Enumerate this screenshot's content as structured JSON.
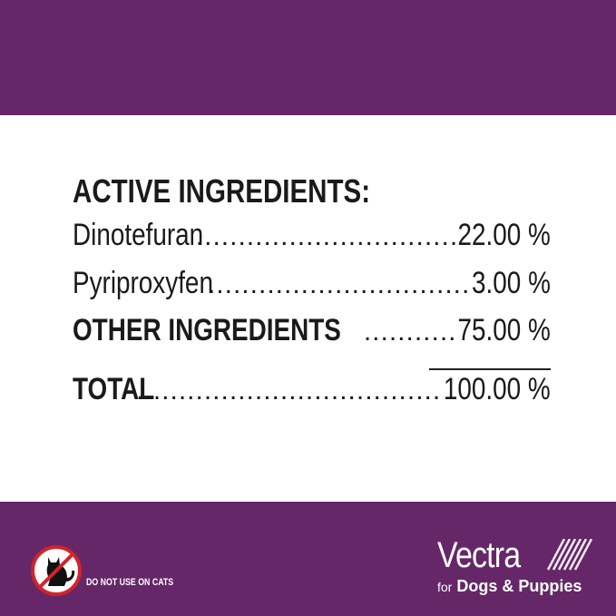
{
  "colors": {
    "brand_purple": "#652768",
    "no_sign_red": "#d2232a"
  },
  "heading": "ACTIVE INGREDIENTS:",
  "rows": [
    {
      "label": "Dinotefuran",
      "value": "22.00 %"
    },
    {
      "label": "Pyriproxyfen",
      "value": "3.00 %"
    },
    {
      "label": "OTHER INGREDIENTS",
      "value": "75.00 %"
    },
    {
      "label": "TOTAL",
      "value": "100.00 %"
    }
  ],
  "warning": {
    "icon": "no-cats-icon",
    "text": "DO NOT USE ON CATS"
  },
  "logo": {
    "brand": "Vectra",
    "for": "for",
    "tagline": "Dogs & Puppies"
  }
}
